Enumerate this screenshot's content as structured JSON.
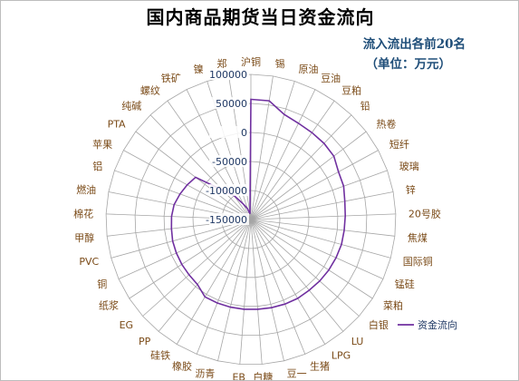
{
  "chart_data": {
    "type": "radar",
    "title": "国内商品期货当日资金流向",
    "annotation": [
      "流入流出各前20名",
      "（单位：万元）"
    ],
    "rlim": [
      -150000,
      100000
    ],
    "ticks": [
      -150000,
      -100000,
      -50000,
      0,
      50000,
      100000
    ],
    "tick_labels": [
      "-150000",
      "-100000",
      "-50000",
      "0",
      "50000",
      "100000"
    ],
    "grid": true,
    "legend_position": "right",
    "categories": [
      "沪铜",
      "锡",
      "原油",
      "豆油",
      "豆粕",
      "铅",
      "热卷",
      "短纤",
      "玻璃",
      "锌",
      "20号胶",
      "焦煤",
      "国际铜",
      "锰硅",
      "菜粕",
      "白银",
      "LU",
      "LPG",
      "生猪",
      "豆一",
      "白糖",
      "EB",
      "沥青",
      "橡胶",
      "硅铁",
      "PP",
      "EG",
      "纸浆",
      "铜",
      "PVC",
      "甲醇",
      "棉花",
      "燃油",
      "铝",
      "苹果",
      "PTA",
      "纯碱",
      "螺纹",
      "铁矿",
      "镍",
      "郑"
    ],
    "series": [
      {
        "name": "资金流向",
        "values": [
          57000,
          57000,
          40000,
          35000,
          33000,
          32000,
          30000,
          22000,
          20000,
          15000,
          13000,
          12000,
          12000,
          11000,
          10000,
          9000,
          8000,
          8000,
          7000,
          6000,
          5000,
          5000,
          5000,
          5000,
          5000,
          -5000,
          -7000,
          -8000,
          -9000,
          -10000,
          -12000,
          -13000,
          -15000,
          -20000,
          -25000,
          -30000,
          -80000,
          -100000,
          -120000,
          -130000,
          -140000
        ]
      }
    ]
  },
  "colors": {
    "series": "#7030a0",
    "grid": "#a6a6a6",
    "category_text": "#7a4a17",
    "tick_text": "#1f3864",
    "note_text": "#1f4e79"
  }
}
